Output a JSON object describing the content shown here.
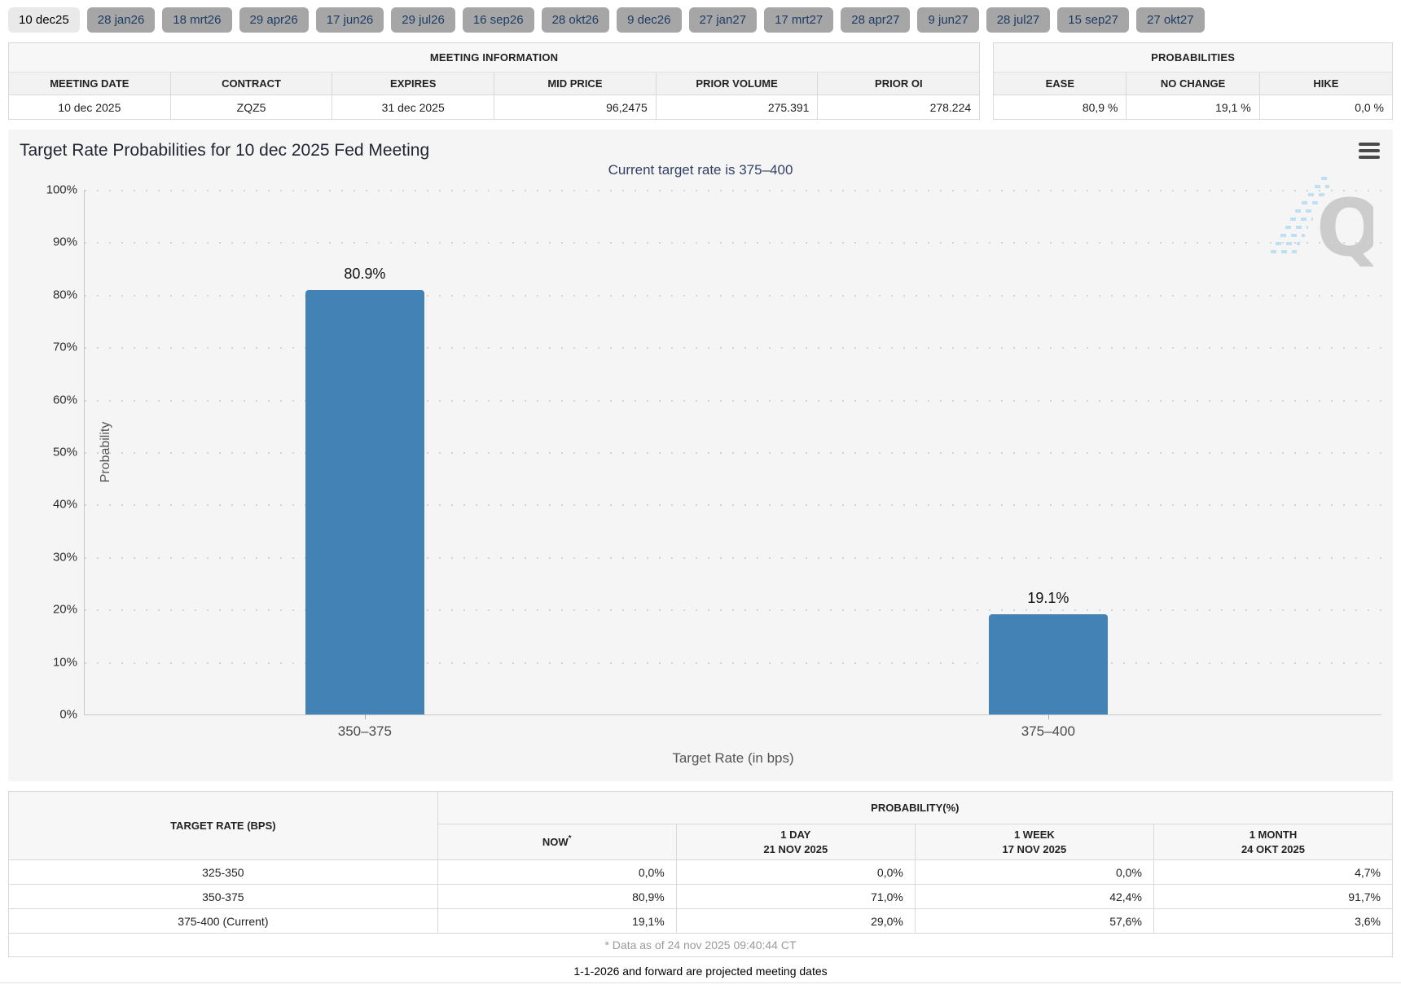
{
  "tabs": [
    {
      "label": "10 dec25",
      "selected": true
    },
    {
      "label": "28 jan26",
      "selected": false
    },
    {
      "label": "18 mrt26",
      "selected": false
    },
    {
      "label": "29 apr26",
      "selected": false
    },
    {
      "label": "17 jun26",
      "selected": false
    },
    {
      "label": "29 jul26",
      "selected": false
    },
    {
      "label": "16 sep26",
      "selected": false
    },
    {
      "label": "28 okt26",
      "selected": false
    },
    {
      "label": "9 dec26",
      "selected": false
    },
    {
      "label": "27 jan27",
      "selected": false
    },
    {
      "label": "17 mrt27",
      "selected": false
    },
    {
      "label": "28 apr27",
      "selected": false
    },
    {
      "label": "9 jun27",
      "selected": false
    },
    {
      "label": "28 jul27",
      "selected": false
    },
    {
      "label": "15 sep27",
      "selected": false
    },
    {
      "label": "27 okt27",
      "selected": false
    }
  ],
  "meeting_info": {
    "title": "MEETING INFORMATION",
    "columns": [
      "MEETING DATE",
      "CONTRACT",
      "EXPIRES",
      "MID PRICE",
      "PRIOR VOLUME",
      "PRIOR OI"
    ],
    "row": {
      "meeting_date": "10 dec 2025",
      "contract": "ZQZ5",
      "expires": "31 dec 2025",
      "mid_price": "96,2475",
      "prior_volume": "275.391",
      "prior_oi": "278.224"
    }
  },
  "probabilities_panel": {
    "title": "PROBABILITIES",
    "columns": [
      "EASE",
      "NO CHANGE",
      "HIKE"
    ],
    "row": {
      "ease": "80,9 %",
      "no_change": "19,1 %",
      "hike": "0,0 %"
    }
  },
  "chart": {
    "yticks": [
      "100%",
      "90%",
      "80%",
      "70%",
      "60%",
      "50%",
      "40%",
      "30%",
      "20%",
      "10%",
      "0%"
    ]
  },
  "chart_data": {
    "type": "bar",
    "title": "Target Rate Probabilities for 10 dec 2025 Fed Meeting",
    "subtitle": "Current target rate is 375–400",
    "categories": [
      "350–375",
      "375–400"
    ],
    "values": [
      80.9,
      19.1
    ],
    "value_labels": [
      "80.9%",
      "19.1%"
    ],
    "xlabel": "Target Rate (in bps)",
    "ylabel": "Probability",
    "ylim": [
      0,
      100
    ],
    "ytick_step": 10,
    "grid": "horizontal-dotted",
    "legend": "none",
    "bar_color": "#4282B4",
    "watermark": "Q logo (QuikStrike)"
  },
  "history_table": {
    "rate_header": "TARGET RATE (BPS)",
    "group_header": "PROBABILITY(%)",
    "subcols": [
      {
        "line1": "NOW",
        "asterisk": "*",
        "line2": ""
      },
      {
        "line1": "1 DAY",
        "line2": "21 NOV 2025"
      },
      {
        "line1": "1 WEEK",
        "line2": "17 NOV 2025"
      },
      {
        "line1": "1 MONTH",
        "line2": "24 OKT 2025"
      }
    ],
    "rows": [
      {
        "rate": "325-350",
        "now": "0,0%",
        "day": "0,0%",
        "week": "0,0%",
        "month": "4,7%"
      },
      {
        "rate": "350-375",
        "now": "80,9%",
        "day": "71,0%",
        "week": "42,4%",
        "month": "91,7%"
      },
      {
        "rate": "375-400 (Current)",
        "now": "19,1%",
        "day": "29,0%",
        "week": "57,6%",
        "month": "3,6%"
      }
    ],
    "footnote": "* Data as of 24 nov 2025 09:40:44 CT"
  },
  "footer_note": "1-1-2026 and forward are projected meeting dates",
  "colors": {
    "bar": "#4282B4",
    "subtitle_navy": "#333F67",
    "now_column_bg": "#FAFAD7",
    "tab_selected_bg": "#E9E9E9",
    "tab_bg": "#A6A6A6",
    "tab_text": "#1E3C64",
    "panel_bg": "#F5F5F5"
  }
}
